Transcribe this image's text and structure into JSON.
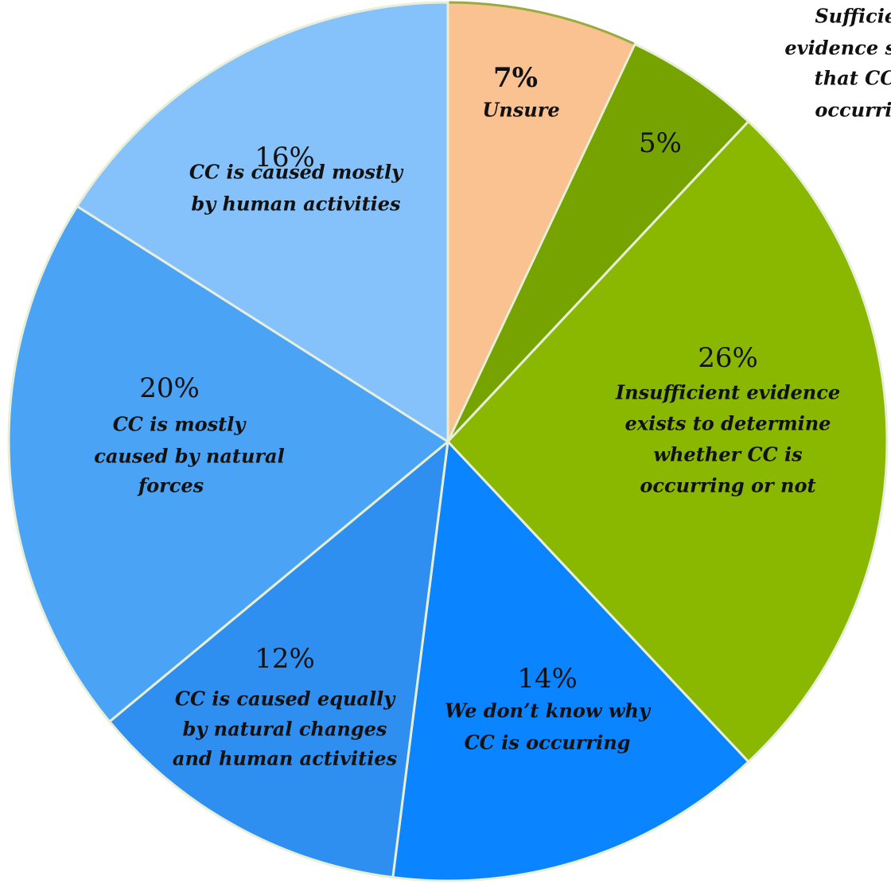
{
  "chart_data": {
    "type": "pie",
    "categories": [
      [
        "Unsure"
      ],
      [
        "Sufficient",
        "evidence shows",
        "that CC is",
        "occurring"
      ],
      [
        "Insufficient evidence",
        "exists to determine",
        "whether CC is",
        "occurring or not"
      ],
      [
        "We don’t know why",
        "CC is occurring"
      ],
      [
        "CC is caused equally",
        "by natural changes",
        "and human activities"
      ],
      [
        "CC is mostly",
        "caused by natural",
        "forces"
      ],
      [
        "CC is caused mostly",
        "by human activities"
      ]
    ],
    "values": [
      7,
      5,
      26,
      14,
      12,
      20,
      16
    ],
    "value_labels": [
      "7%",
      "5%",
      "26%",
      "14%",
      "12%",
      "20%",
      "16%"
    ],
    "colors": [
      "#fac191",
      "#77a300",
      "#8ab700",
      "#0a84ff",
      "#2f8ff0",
      "#4aa3f5",
      "#85c1fb"
    ]
  }
}
